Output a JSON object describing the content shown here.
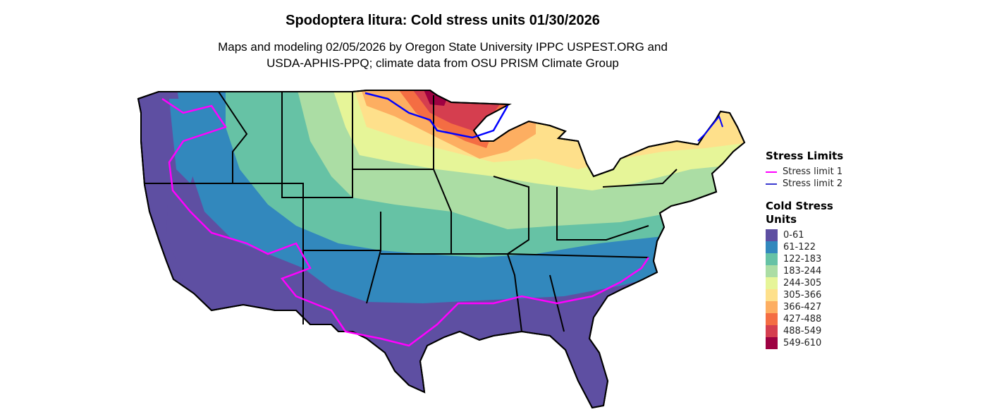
{
  "header": {
    "title": "Spodoptera litura: Cold stress units 01/30/2026",
    "subtitle_line1": "Maps and modeling 02/05/2026 by Oregon State University IPPC USPEST.ORG and",
    "subtitle_line2": "USDA-APHIS-PPQ; climate data from OSU PRISM Climate Group"
  },
  "legend_stress": {
    "title": "Stress Limits",
    "items": [
      {
        "label": "Stress limit 1",
        "color": "#ff00ff"
      },
      {
        "label": "Stress limit 2",
        "color": "#0000ff"
      }
    ]
  },
  "legend_units": {
    "title": "Cold Stress Units",
    "items": [
      {
        "label": "0-61",
        "color": "#5e4fa2"
      },
      {
        "label": "61-122",
        "color": "#3288bd"
      },
      {
        "label": "122-183",
        "color": "#66c2a5"
      },
      {
        "label": "183-244",
        "color": "#abdda4"
      },
      {
        "label": "244-305",
        "color": "#e6f598"
      },
      {
        "label": "305-366",
        "color": "#fee08b"
      },
      {
        "label": "366-427",
        "color": "#fdae61"
      },
      {
        "label": "427-488",
        "color": "#f46d43"
      },
      {
        "label": "488-549",
        "color": "#d53e4f"
      },
      {
        "label": "549-610",
        "color": "#9e0142"
      }
    ]
  }
}
